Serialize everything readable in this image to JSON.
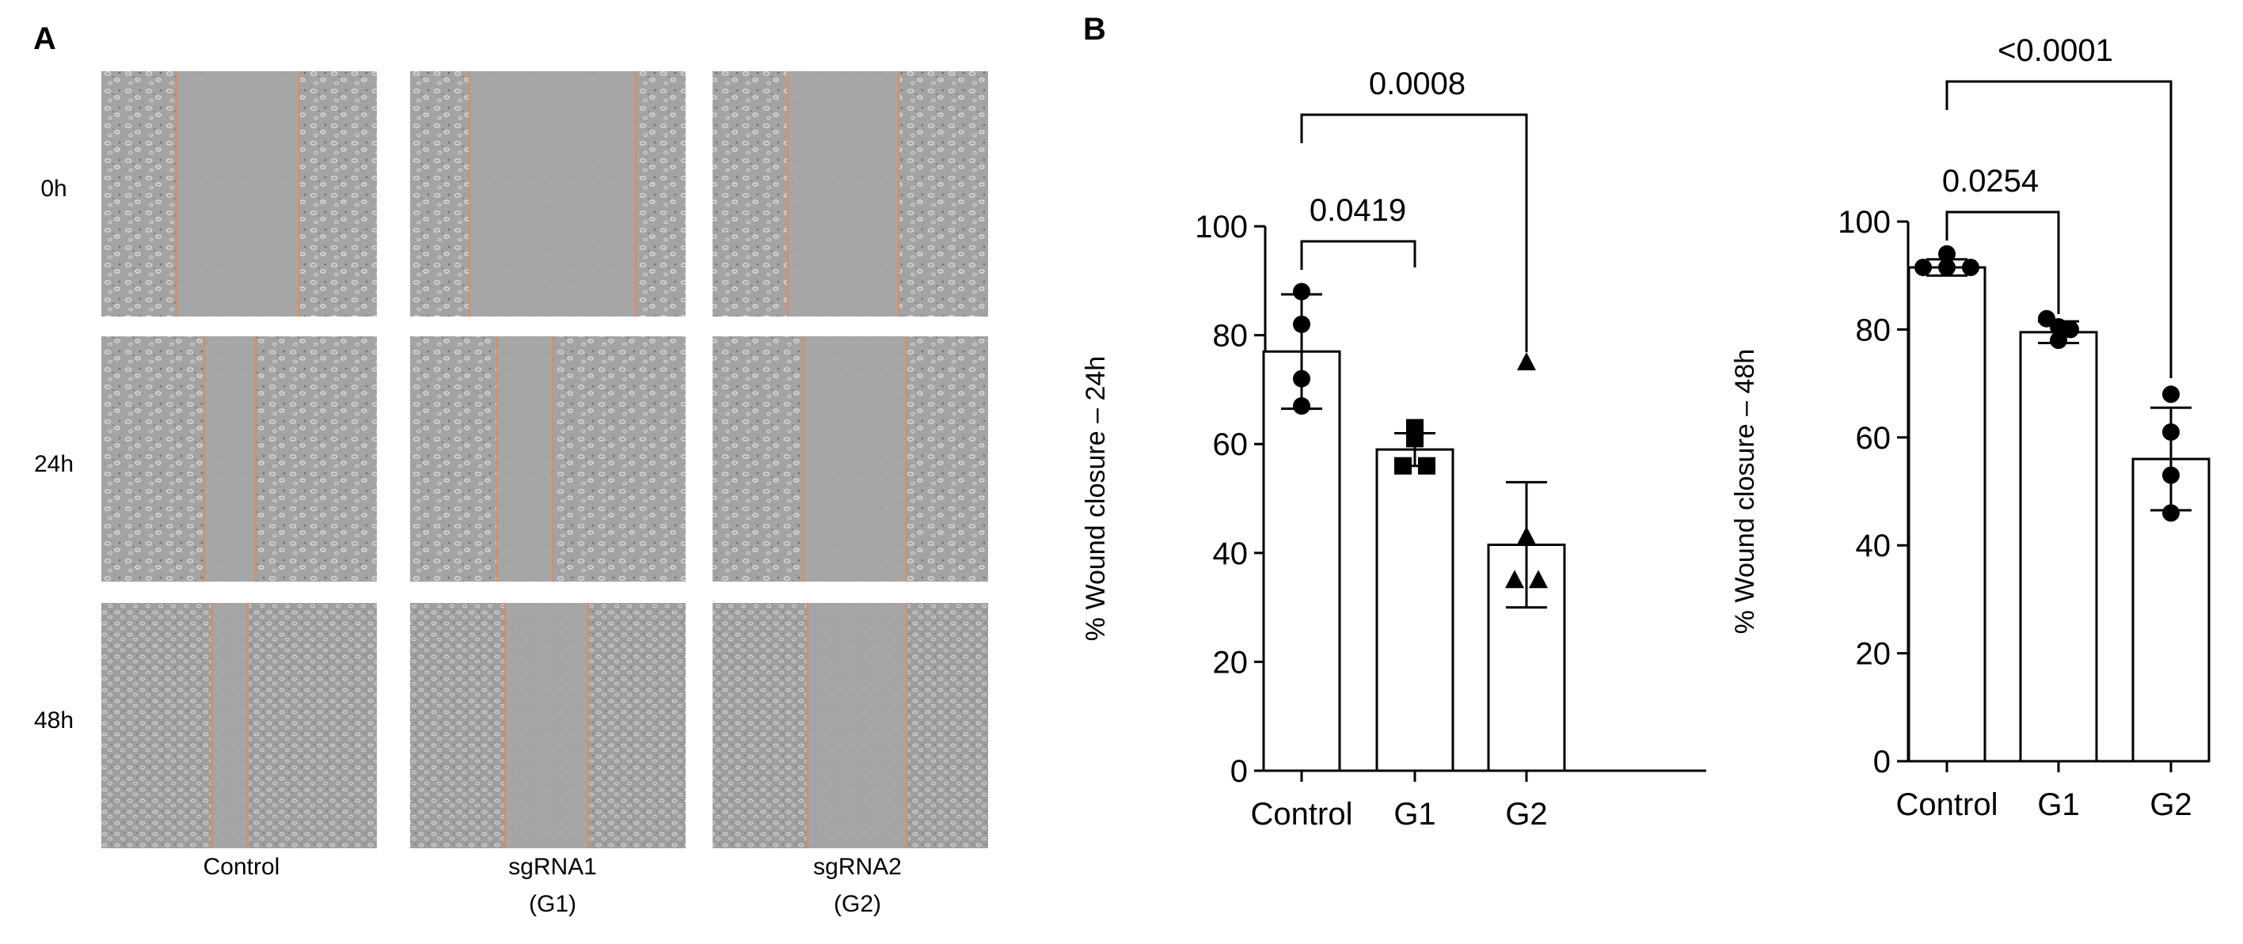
{
  "panel_a": {
    "label": "A",
    "row_labels": [
      "0h",
      "24h",
      "48h"
    ],
    "column_labels": [
      {
        "line1": "Control",
        "line2": ""
      },
      {
        "line1": "sgRNA1",
        "line2": "(G1)"
      },
      {
        "line1": "sgRNA2",
        "line2": "(G2)"
      }
    ],
    "line_color": "#e08a5a"
  },
  "panel_b": {
    "label": "B"
  },
  "chart_data": [
    {
      "type": "bar",
      "ylabel": "% Wound closure – 24h",
      "categories": [
        "Control",
        "G1",
        "G2"
      ],
      "values": [
        77,
        59,
        41.5
      ],
      "sd": [
        10.5,
        3,
        11.5
      ],
      "points": [
        [
          88,
          82,
          72,
          67
        ],
        [
          63,
          61,
          56,
          56
        ],
        [
          75,
          43,
          35,
          35
        ]
      ],
      "markers": [
        "circle",
        "square",
        "triangle"
      ],
      "ylim": [
        0,
        100
      ],
      "yticks": [
        0,
        20,
        40,
        60,
        80,
        100
      ],
      "comparisons": [
        {
          "from": "Control",
          "to": "G1",
          "label": "0.0419"
        },
        {
          "from": "Control",
          "to": "G2",
          "label": "0.0008"
        }
      ]
    },
    {
      "type": "bar",
      "ylabel": "% Wound closure – 48h",
      "categories": [
        "Control",
        "G1",
        "G2"
      ],
      "values": [
        91.5,
        79.5,
        56
      ],
      "sd": [
        1.5,
        2,
        9.5
      ],
      "points": [
        [
          94,
          91.5,
          91.5,
          91.5
        ],
        [
          82,
          80.5,
          80,
          78
        ],
        [
          68,
          61,
          53,
          46
        ]
      ],
      "markers": [
        "circle",
        "circle",
        "circle"
      ],
      "ylim": [
        0,
        100
      ],
      "yticks": [
        0,
        20,
        40,
        60,
        80,
        100
      ],
      "comparisons": [
        {
          "from": "Control",
          "to": "G1",
          "label": "0.0254"
        },
        {
          "from": "Control",
          "to": "G2",
          "label": "<0.0001"
        }
      ]
    }
  ]
}
